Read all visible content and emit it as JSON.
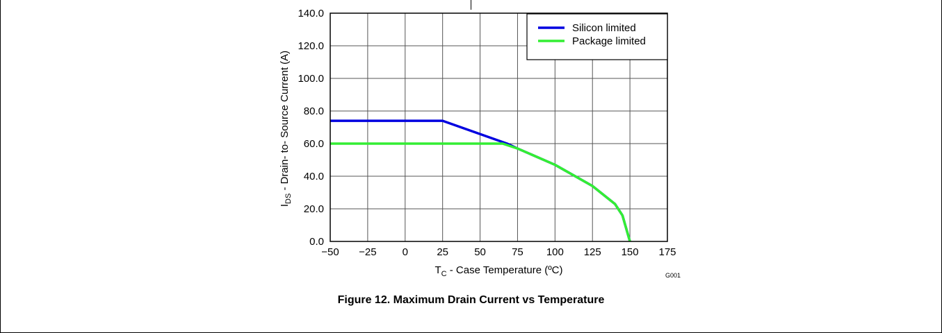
{
  "figure": {
    "caption": "Figure 12.  Maximum Drain Current vs Temperature",
    "graph_code": "G001"
  },
  "chart_data": {
    "type": "line",
    "x_axis": {
      "title_main": "T",
      "title_sub": "C",
      "title_rest": " - Case Temperature (ºC)",
      "range": [
        -50,
        175
      ],
      "ticks": [
        -50,
        -25,
        0,
        25,
        50,
        75,
        100,
        125,
        150,
        175
      ],
      "tick_labels": [
        "−50",
        "−25",
        "0",
        "25",
        "50",
        "75",
        "100",
        "125",
        "150",
        "175"
      ]
    },
    "y_axis": {
      "title_main": "I",
      "title_sub": "DS",
      "title_rest": " - Drain- to- Source Current (A)",
      "range": [
        0,
        140
      ],
      "ticks": [
        0,
        20,
        40,
        60,
        80,
        100,
        120,
        140
      ],
      "tick_labels": [
        "0.0",
        "20.0",
        "40.0",
        "60.0",
        "80.0",
        "100.0",
        "120.0",
        "140.0"
      ]
    },
    "grid": true,
    "legend_position": "top-right",
    "series": [
      {
        "name": "Silicon limited",
        "color": "#0000e0",
        "points": [
          [
            -50,
            74
          ],
          [
            25,
            74
          ],
          [
            68,
            60
          ],
          [
            75,
            57
          ],
          [
            100,
            47
          ],
          [
            125,
            34
          ],
          [
            140,
            23
          ],
          [
            145,
            16
          ],
          [
            150,
            0
          ]
        ]
      },
      {
        "name": "Package limited",
        "color": "#33ee33",
        "points": [
          [
            -50,
            60
          ],
          [
            65,
            60
          ],
          [
            75,
            57
          ],
          [
            100,
            47
          ],
          [
            125,
            34
          ],
          [
            140,
            23
          ],
          [
            145,
            16
          ],
          [
            150,
            0
          ]
        ]
      }
    ]
  }
}
